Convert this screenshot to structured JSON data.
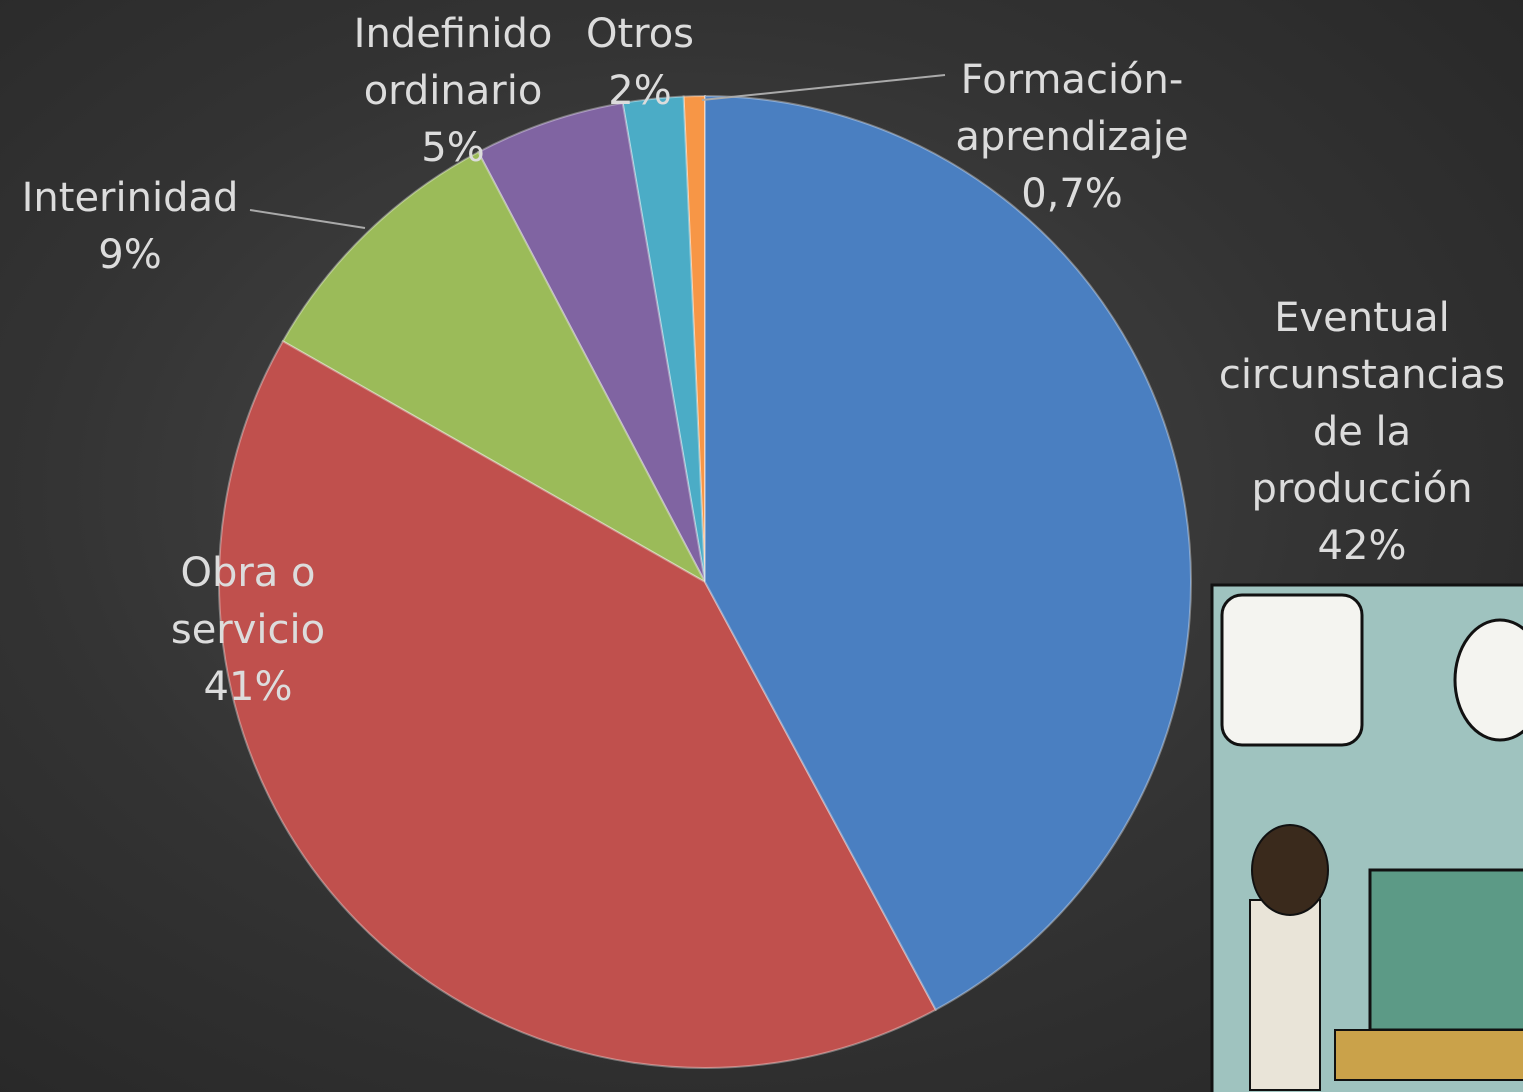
{
  "chart_data": {
    "type": "pie",
    "categories": [
      "Eventual circunstancias de la producción",
      "Obra o servicio",
      "Interinidad",
      "Indefinido ordinario",
      "Otros",
      "Formación-aprendizaje"
    ],
    "values": [
      42,
      41,
      9,
      5,
      2,
      0.7
    ],
    "value_labels": [
      "42%",
      "41%",
      "9%",
      "5%",
      "2%",
      "0,7%"
    ],
    "colors": [
      "#4a7fc1",
      "#c0504d",
      "#9bbb59",
      "#8064a2",
      "#4bacc6",
      "#f79646"
    ]
  }
}
